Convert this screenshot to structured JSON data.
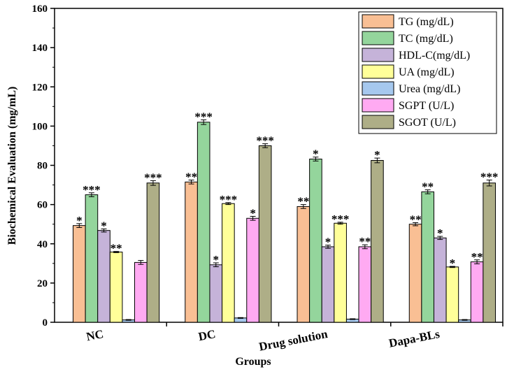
{
  "chart_data": {
    "type": "bar",
    "xlabel": "Groups",
    "ylabel": "Biochemical Evaluation (mg/mL)",
    "ylim": [
      0,
      160
    ],
    "yticks": [
      0,
      20,
      40,
      60,
      80,
      100,
      120,
      140,
      160
    ],
    "categories": [
      "NC",
      "DC",
      "Drug solution",
      "Dapa-BLs"
    ],
    "legend_position": "top-right",
    "series": [
      {
        "name": "TG (mg/dL)",
        "color": "#f9bf94",
        "values": [
          49.3,
          71.5,
          59.0,
          50.0
        ],
        "errors": [
          1.0,
          1.0,
          1.0,
          0.8
        ],
        "significance": [
          "*",
          "**",
          "**",
          "**"
        ]
      },
      {
        "name": "TC (mg/dL)",
        "color": "#94d59c",
        "values": [
          65.0,
          102.0,
          83.2,
          66.5
        ],
        "errors": [
          1.0,
          1.2,
          1.0,
          1.0
        ],
        "significance": [
          "***",
          "***",
          "*",
          "**"
        ]
      },
      {
        "name": "HDL-C(mg/dL)",
        "color": "#c5b3d9",
        "values": [
          46.8,
          29.3,
          38.5,
          43.0
        ],
        "errors": [
          0.8,
          1.0,
          0.8,
          0.8
        ],
        "significance": [
          "*",
          "*",
          "*",
          "*"
        ]
      },
      {
        "name": "UA (mg/dL)",
        "color": "#ffff99",
        "values": [
          35.8,
          60.5,
          50.5,
          28.2
        ],
        "errors": [
          0.3,
          0.5,
          0.5,
          0.3
        ],
        "significance": [
          "**",
          "***",
          "***",
          "*"
        ]
      },
      {
        "name": "Urea (mg/dL)",
        "color": "#a6c8ee",
        "values": [
          1.2,
          2.2,
          1.6,
          1.2
        ],
        "errors": [
          0.2,
          0.2,
          0.2,
          0.2
        ],
        "significance": [
          "",
          "",
          "",
          ""
        ]
      },
      {
        "name": "SGPT (U/L)",
        "color": "#ffaaf2",
        "values": [
          30.5,
          53.0,
          38.5,
          30.8
        ],
        "errors": [
          1.0,
          1.0,
          1.0,
          1.0
        ],
        "significance": [
          "",
          "*",
          "**",
          "**"
        ]
      },
      {
        "name": "SGOT (U/L)",
        "color": "#aeae87",
        "values": [
          71.0,
          90.0,
          82.5,
          71.0
        ],
        "errors": [
          1.2,
          1.0,
          1.2,
          1.5
        ],
        "significance": [
          "***",
          "***",
          "*",
          "***"
        ]
      }
    ]
  }
}
